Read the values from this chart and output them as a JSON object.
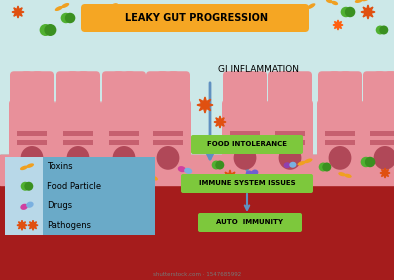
{
  "title": "LEAKY GUT PROGRESSION",
  "title_bg": "#f5a623",
  "gi_label": "GI INFLAMMATION",
  "bg_top": "#cce8e8",
  "bg_bottom": "#a51c1c",
  "intestine_pink": "#e8909a",
  "intestine_dark_pink": "#d06070",
  "nucleus_color": "#b04858",
  "band_color": "#c05868",
  "legend_bg": "#6aaac8",
  "legend_icon_bg": "#b8d8e8",
  "legend_labels": [
    "Toxins",
    "Food Particle",
    "Drugs",
    "Pathogens"
  ],
  "box_labels": [
    "FOOD INTOLERANCE",
    "IMMUNE SYSTEM ISSUES",
    "AUTO  IMMUNITY"
  ],
  "box_color": "#7dc83c",
  "arrow_color": "#6090c0",
  "orange_bact": "#f0a020",
  "green_blob": "#50b030",
  "pink_drug": "#d040a0",
  "blue_drug": "#6090d0",
  "pathogen_color": "#e05010",
  "watermark": "shutterstock.com · 1547685992"
}
